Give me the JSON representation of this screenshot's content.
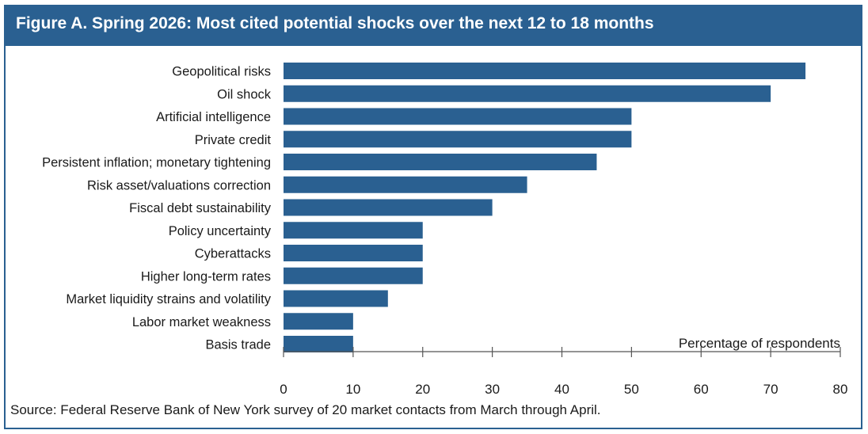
{
  "figure": {
    "title": "Figure A. Spring 2026: Most cited potential shocks over the next 12 to 18 months",
    "source": "Source: Federal Reserve Bank of New York survey of 20 market contacts from March through April.",
    "accent_color": "#2a6091",
    "bar_color": "#2a6091"
  },
  "chart_data": {
    "type": "bar",
    "orientation": "horizontal",
    "categories": [
      "Geopolitical risks",
      "Oil shock",
      "Artificial intelligence",
      "Private credit",
      "Persistent inflation; monetary tightening",
      "Risk asset/valuations correction",
      "Fiscal debt sustainability",
      "Policy uncertainty",
      "Cyberattacks",
      "Higher long-term rates",
      "Market liquidity strains and volatility",
      "Labor market weakness",
      "Basis trade"
    ],
    "values": [
      75,
      70,
      50,
      50,
      45,
      35,
      30,
      20,
      20,
      20,
      15,
      10,
      10
    ],
    "xlabel": "Percentage of respondents",
    "xlim": [
      0,
      80
    ],
    "xticks": [
      "0",
      "10",
      "20",
      "30",
      "40",
      "50",
      "60",
      "70",
      "80"
    ],
    "grid": false
  }
}
